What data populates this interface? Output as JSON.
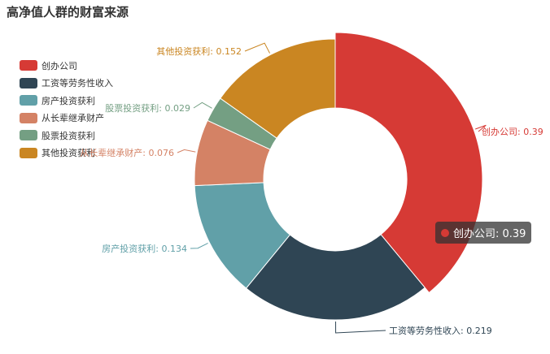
{
  "chart_data": {
    "type": "pie",
    "variant": "donut",
    "title": "高净值人群的财富来源",
    "legend_position": "top-left",
    "slices": [
      {
        "name": "创办公司",
        "value": 0.39,
        "color": "#d63a35",
        "label": "创办公司: 0.39"
      },
      {
        "name": "工资等劳务性收入",
        "value": 0.219,
        "color": "#2f4554",
        "label": "工资等劳务性收入: 0.219"
      },
      {
        "name": "房产投资获利",
        "value": 0.134,
        "color": "#61a0a8",
        "label": "房产投资获利: 0.134"
      },
      {
        "name": "从长辈继承财产",
        "value": 0.076,
        "color": "#d48265",
        "label": "从长辈继承财产: 0.076"
      },
      {
        "name": "股票投资获利",
        "value": 0.029,
        "color": "#749f83",
        "label": "股票投资获利: 0.029"
      },
      {
        "name": "其他投资获利",
        "value": 0.152,
        "color": "#ca8622",
        "label": "其他投资获利: 0.152"
      }
    ],
    "tooltip": {
      "text": "创办公司: 0.39",
      "color": "#d63a35"
    }
  }
}
